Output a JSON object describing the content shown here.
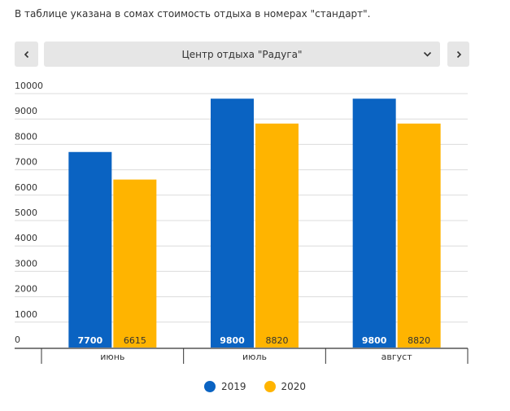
{
  "caption": "В таблице указана в сомах стоимость отдыха в номерах \"стандарт\".",
  "selector": {
    "value": "Центр отдыха \"Радуга\""
  },
  "icons": {
    "prev": "chevron-left-icon",
    "next": "chevron-right-icon",
    "dropdown": "chevron-down-icon"
  },
  "colors": {
    "s2019": "#0a63c2",
    "s2020": "#ffb400",
    "grid": "#dcdcdc",
    "axis": "#333333"
  },
  "chart_data": {
    "type": "bar",
    "categories": [
      "июнь",
      "июль",
      "август"
    ],
    "series": [
      {
        "name": "2019",
        "values": [
          7700,
          9800,
          9800
        ]
      },
      {
        "name": "2020",
        "values": [
          6615,
          8820,
          8820
        ]
      }
    ],
    "ylim": [
      0,
      10000
    ],
    "yticks": [
      0,
      1000,
      2000,
      3000,
      4000,
      5000,
      6000,
      7000,
      8000,
      9000,
      10000
    ],
    "grid": true,
    "legend": "bottom"
  }
}
